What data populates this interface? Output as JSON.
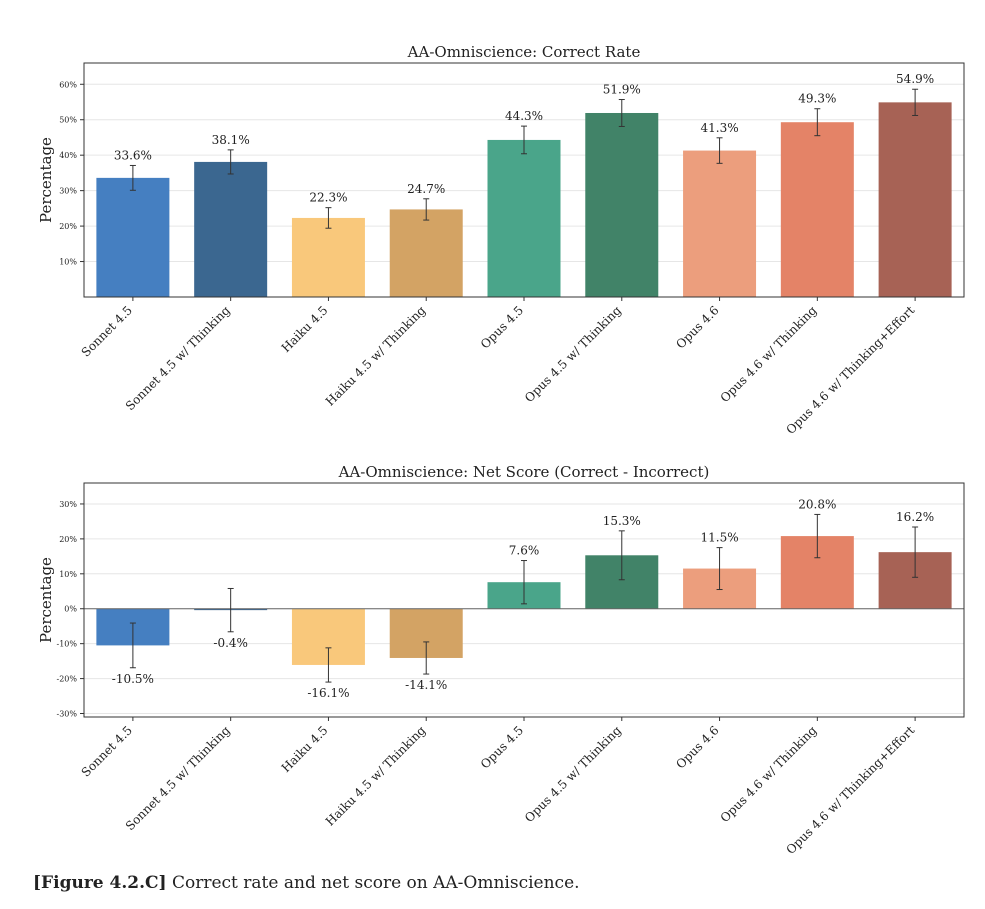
{
  "figure": {
    "caption_label": "[Figure 4.2.C]",
    "caption_text": "Correct rate and net score on AA-Omniscience."
  },
  "chart_data": [
    {
      "type": "bar",
      "title": "AA-Omniscience: Correct Rate",
      "xlabel": "",
      "ylabel": "Percentage",
      "ylim": [
        0,
        66
      ],
      "yticks": [
        10,
        20,
        30,
        40,
        50,
        60
      ],
      "ytick_labels": [
        "10%",
        "20%",
        "30%",
        "40%",
        "50%",
        "60%"
      ],
      "grid": true,
      "categories": [
        "Sonnet 4.5",
        "Sonnet 4.5 w/ Thinking",
        "Haiku 4.5",
        "Haiku 4.5 w/ Thinking",
        "Opus 4.5",
        "Opus 4.5 w/ Thinking",
        "Opus 4.6",
        "Opus 4.6 w/ Thinking",
        "Opus 4.6 w/ Thinking+Effort"
      ],
      "values": [
        33.6,
        38.1,
        22.3,
        24.7,
        44.3,
        51.9,
        41.3,
        49.3,
        54.9
      ],
      "value_labels": [
        "33.6%",
        "38.1%",
        "22.3%",
        "24.7%",
        "44.3%",
        "51.9%",
        "41.3%",
        "49.3%",
        "54.9%"
      ],
      "error": [
        3.5,
        3.4,
        2.9,
        3.0,
        3.9,
        3.8,
        3.6,
        3.8,
        3.7
      ],
      "colors": [
        "#3f7bbf",
        "#35628c",
        "#f9c677",
        "#d2a05f",
        "#44a286",
        "#3b7f63",
        "#eb9b79",
        "#e37f62",
        "#a45d50"
      ]
    },
    {
      "type": "bar",
      "title": "AA-Omniscience: Net Score (Correct - Incorrect)",
      "xlabel": "",
      "ylabel": "Percentage",
      "ylim": [
        -31,
        36
      ],
      "yticks": [
        -30,
        -20,
        -10,
        0,
        10,
        20,
        30
      ],
      "ytick_labels": [
        "-30%",
        "-20%",
        "-10%",
        "0%",
        "10%",
        "20%",
        "30%"
      ],
      "grid": true,
      "categories": [
        "Sonnet 4.5",
        "Sonnet 4.5 w/ Thinking",
        "Haiku 4.5",
        "Haiku 4.5 w/ Thinking",
        "Opus 4.5",
        "Opus 4.5 w/ Thinking",
        "Opus 4.6",
        "Opus 4.6 w/ Thinking",
        "Opus 4.6 w/ Thinking+Effort"
      ],
      "values": [
        -10.5,
        -0.4,
        -16.1,
        -14.1,
        7.6,
        15.3,
        11.5,
        20.8,
        16.2
      ],
      "value_labels": [
        "-10.5%",
        "-0.4%",
        "-16.1%",
        "-14.1%",
        "7.6%",
        "15.3%",
        "11.5%",
        "20.8%",
        "16.2%"
      ],
      "error": [
        6.4,
        6.2,
        4.9,
        4.6,
        6.2,
        7.0,
        6.0,
        6.2,
        7.2
      ],
      "colors": [
        "#3f7bbf",
        "#35628c",
        "#f9c677",
        "#d2a05f",
        "#44a286",
        "#3b7f63",
        "#eb9b79",
        "#e37f62",
        "#a45d50"
      ]
    }
  ]
}
